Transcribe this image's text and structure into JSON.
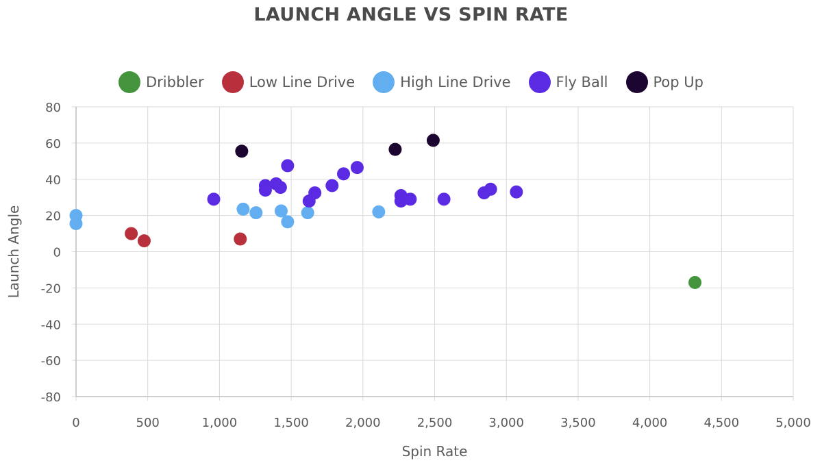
{
  "chart_data": {
    "type": "scatter",
    "title": "LAUNCH ANGLE VS SPIN RATE",
    "xlabel": "Spin Rate",
    "ylabel": "Launch Angle",
    "xlim": [
      0,
      5000
    ],
    "ylim": [
      -80,
      80
    ],
    "x_ticks": [
      "0",
      "500",
      "1,000",
      "1,500",
      "2,000",
      "2,500",
      "3,000",
      "3,500",
      "4,000",
      "4,500",
      "5,000"
    ],
    "y_ticks": [
      "-80",
      "-60",
      "-40",
      "-20",
      "0",
      "20",
      "40",
      "60",
      "80"
    ],
    "grid": true,
    "legend_position": "top-center",
    "series": [
      {
        "name": "Dribbler",
        "color": "#43943d",
        "points": [
          [
            4315,
            -17
          ]
        ]
      },
      {
        "name": "Low Line Drive",
        "color": "#b8303b",
        "points": [
          [
            385,
            10
          ],
          [
            475,
            6
          ],
          [
            1145,
            7
          ]
        ]
      },
      {
        "name": "High Line Drive",
        "color": "#63aef0",
        "points": [
          [
            0,
            20
          ],
          [
            0,
            15.5
          ],
          [
            1165,
            23.5
          ],
          [
            1255,
            21.5
          ],
          [
            1430,
            22.5
          ],
          [
            1475,
            16.5
          ],
          [
            1615,
            21.5
          ],
          [
            2110,
            22
          ]
        ]
      },
      {
        "name": "Fly Ball",
        "color": "#5a2be3",
        "points": [
          [
            960,
            29
          ],
          [
            1320,
            36.5
          ],
          [
            1320,
            34
          ],
          [
            1395,
            37.5
          ],
          [
            1425,
            35.5
          ],
          [
            1475,
            47.5
          ],
          [
            1625,
            28
          ],
          [
            1665,
            32.5
          ],
          [
            1785,
            36.5
          ],
          [
            1865,
            43
          ],
          [
            1960,
            46.5
          ],
          [
            2265,
            31
          ],
          [
            2265,
            28
          ],
          [
            2330,
            29
          ],
          [
            2565,
            29
          ],
          [
            2845,
            32.5
          ],
          [
            2890,
            34.5
          ],
          [
            3070,
            33
          ]
        ]
      },
      {
        "name": "Pop Up",
        "color": "#1c0530",
        "points": [
          [
            1155,
            55.5
          ],
          [
            2225,
            56.5
          ],
          [
            2490,
            61.5
          ]
        ]
      }
    ]
  }
}
